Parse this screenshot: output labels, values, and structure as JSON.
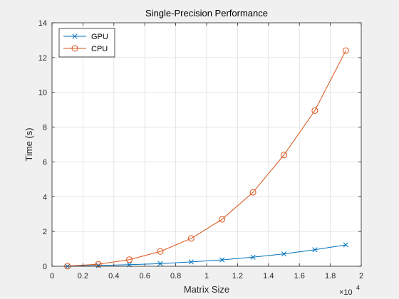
{
  "chart_data": {
    "type": "line",
    "title": "Single-Precision Performance",
    "xlabel": "Matrix Size",
    "ylabel": "Time (s)",
    "x_exponent_label": "×10",
    "x_exponent_power": "4",
    "x_multiplier": 10000,
    "xlim": [
      0,
      2
    ],
    "ylim": [
      0,
      14
    ],
    "xticks": [
      0,
      0.2,
      0.4,
      0.6,
      0.8,
      1,
      1.2,
      1.4,
      1.6,
      1.8,
      2
    ],
    "xtick_labels": [
      "0",
      "0.2",
      "0.4",
      "0.6",
      "0.8",
      "1",
      "1.2",
      "1.4",
      "1.6",
      "1.8",
      "2"
    ],
    "yticks": [
      0,
      2,
      4,
      6,
      8,
      10,
      12,
      14
    ],
    "ytick_labels": [
      "0",
      "2",
      "4",
      "6",
      "8",
      "10",
      "12",
      "14"
    ],
    "grid": true,
    "legend_position": "top-left",
    "x": [
      0.1,
      0.3,
      0.5,
      0.7,
      0.9,
      1.1,
      1.3,
      1.5,
      1.7,
      1.9
    ],
    "series": [
      {
        "name": "GPU",
        "marker": "x",
        "color": "#0072BD",
        "values": [
          0.0,
          0.04,
          0.09,
          0.15,
          0.25,
          0.37,
          0.52,
          0.71,
          0.95,
          1.23
        ]
      },
      {
        "name": "CPU",
        "marker": "o",
        "color": "#D95319",
        "values": [
          0.01,
          0.12,
          0.38,
          0.85,
          1.6,
          2.7,
          4.25,
          6.4,
          8.95,
          12.4
        ]
      }
    ]
  }
}
